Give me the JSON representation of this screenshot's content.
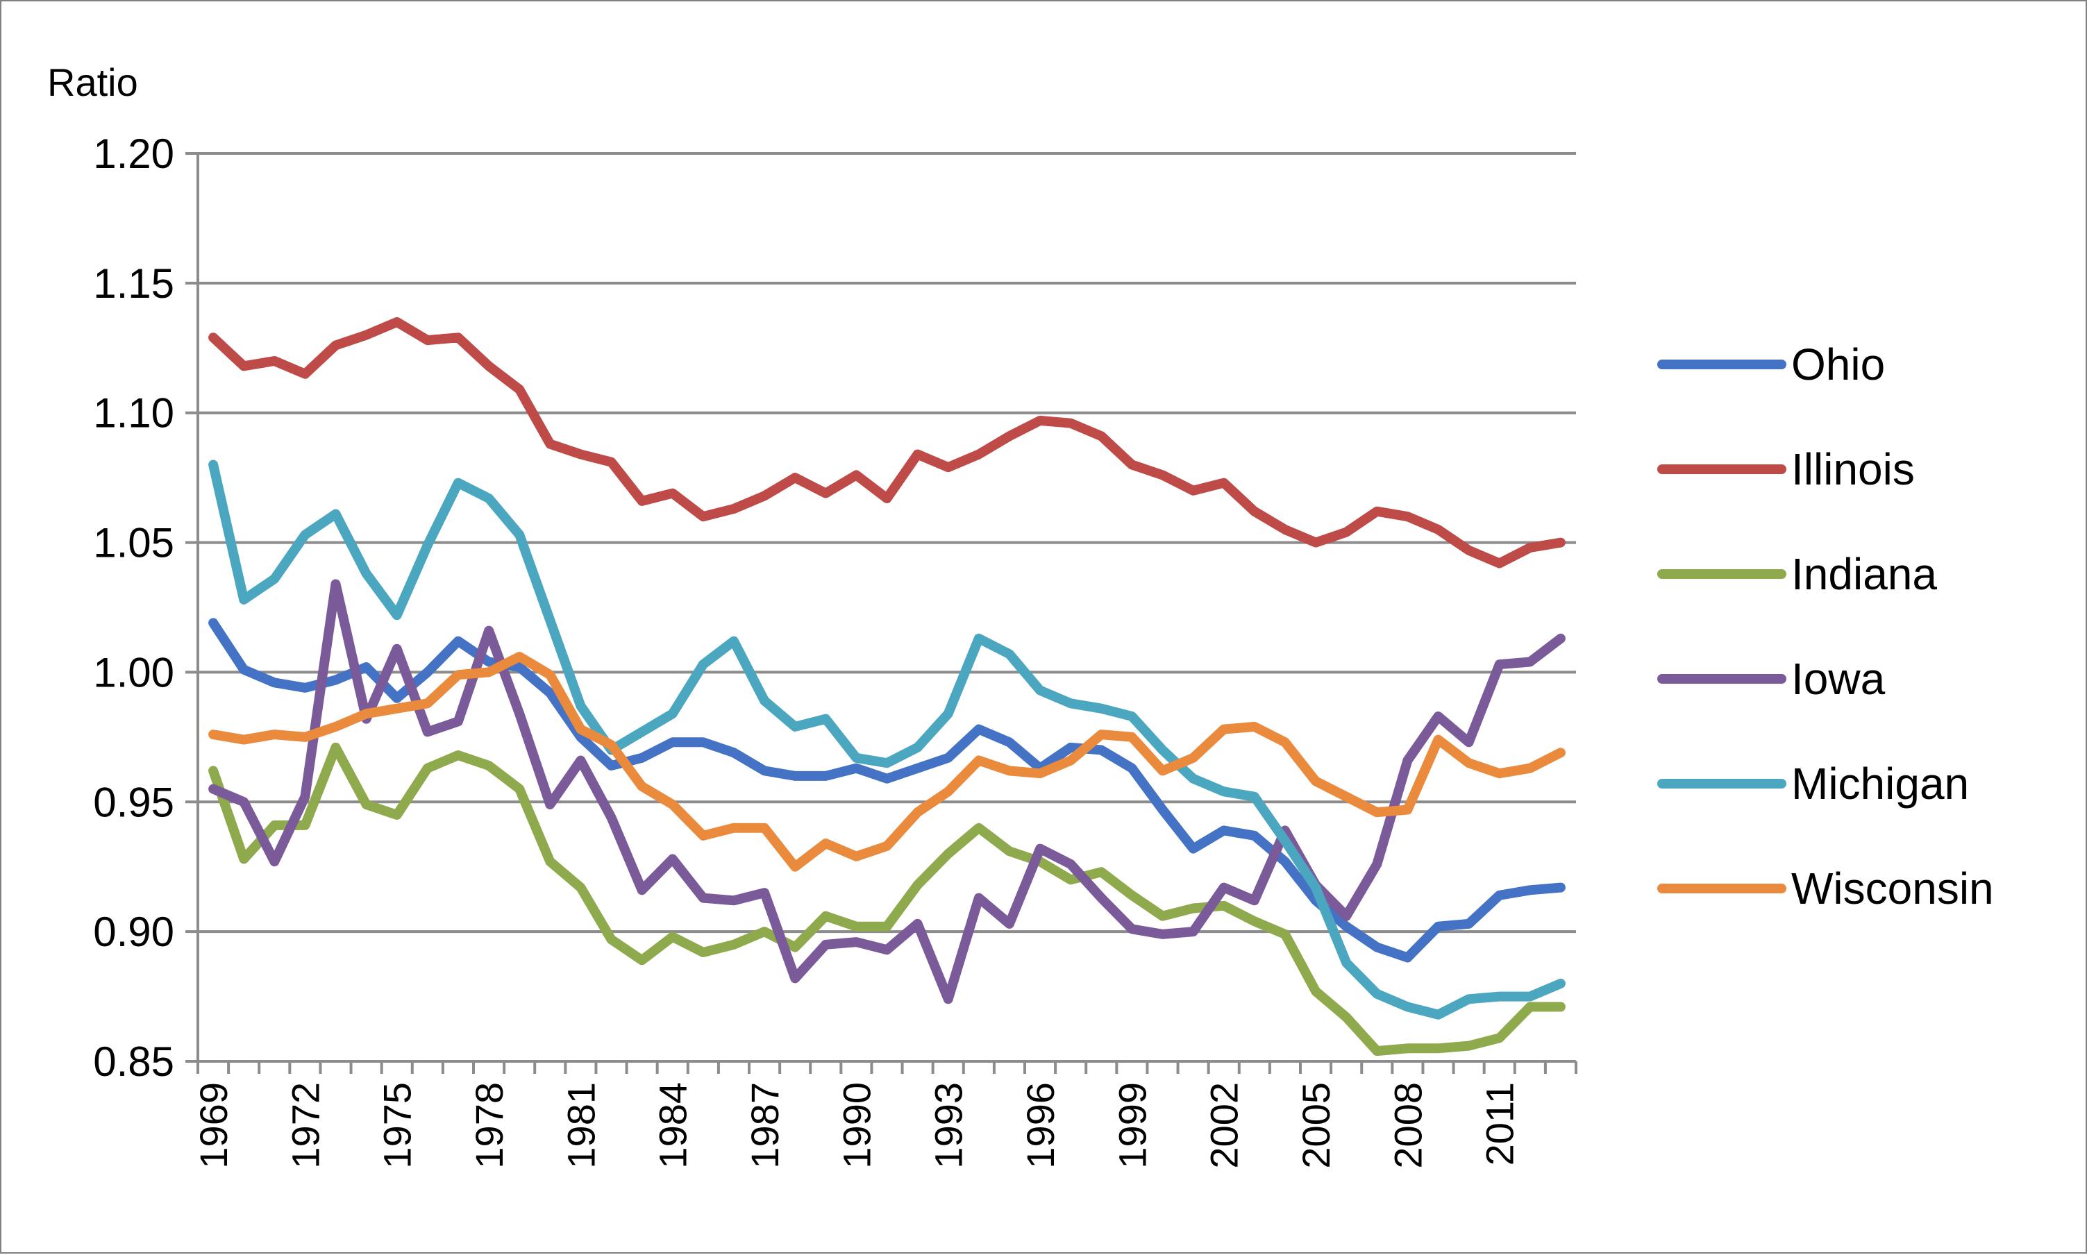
{
  "chart_data": {
    "type": "line",
    "title": "",
    "xlabel": "",
    "ylabel": "Ratio",
    "ylim": [
      0.85,
      1.2
    ],
    "yticks": [
      "1.20",
      "1.15",
      "1.10",
      "1.05",
      "1.00",
      "0.95",
      "0.90",
      "0.85"
    ],
    "xticks": [
      "1969",
      "1972",
      "1975",
      "1978",
      "1981",
      "1984",
      "1987",
      "1990",
      "1993",
      "1996",
      "1999",
      "2002",
      "2005",
      "2008",
      "2011"
    ],
    "grid": true,
    "legend_position": "right",
    "x": [
      1969,
      1970,
      1971,
      1972,
      1973,
      1974,
      1975,
      1976,
      1977,
      1978,
      1979,
      1980,
      1981,
      1982,
      1983,
      1984,
      1985,
      1986,
      1987,
      1988,
      1989,
      1990,
      1991,
      1992,
      1993,
      1994,
      1995,
      1996,
      1997,
      1998,
      1999,
      2000,
      2001,
      2002,
      2003,
      2004,
      2005,
      2006,
      2007,
      2008,
      2009,
      2010,
      2011,
      2012,
      2013
    ],
    "series": [
      {
        "name": "Ohio",
        "color": "#4472C4",
        "values": [
          1.019,
          1.001,
          0.996,
          0.994,
          0.997,
          1.002,
          0.99,
          1.0,
          1.012,
          1.004,
          1.002,
          0.992,
          0.975,
          0.964,
          0.967,
          0.973,
          0.973,
          0.969,
          0.962,
          0.96,
          0.96,
          0.963,
          0.959,
          0.963,
          0.967,
          0.978,
          0.973,
          0.963,
          0.971,
          0.97,
          0.963,
          0.947,
          0.932,
          0.939,
          0.937,
          0.927,
          0.912,
          0.902,
          0.894,
          0.89,
          0.902,
          0.903,
          0.914,
          0.916,
          0.917
        ]
      },
      {
        "name": "Illinois",
        "color": "#BE4B48",
        "values": [
          1.129,
          1.118,
          1.12,
          1.115,
          1.126,
          1.13,
          1.135,
          1.128,
          1.129,
          1.118,
          1.109,
          1.088,
          1.084,
          1.081,
          1.066,
          1.069,
          1.06,
          1.063,
          1.068,
          1.075,
          1.069,
          1.076,
          1.067,
          1.084,
          1.079,
          1.084,
          1.091,
          1.097,
          1.096,
          1.091,
          1.08,
          1.076,
          1.07,
          1.073,
          1.062,
          1.055,
          1.05,
          1.054,
          1.062,
          1.06,
          1.055,
          1.047,
          1.042,
          1.048,
          1.05
        ]
      },
      {
        "name": "Indiana",
        "color": "#8FAA4D",
        "values": [
          0.962,
          0.928,
          0.941,
          0.941,
          0.971,
          0.949,
          0.945,
          0.963,
          0.968,
          0.964,
          0.955,
          0.927,
          0.917,
          0.897,
          0.889,
          0.898,
          0.892,
          0.895,
          0.9,
          0.894,
          0.906,
          0.902,
          0.902,
          0.918,
          0.93,
          0.94,
          0.931,
          0.927,
          0.92,
          0.923,
          0.914,
          0.906,
          0.909,
          0.91,
          0.904,
          0.899,
          0.877,
          0.867,
          0.854,
          0.855,
          0.855,
          0.856,
          0.859,
          0.871,
          0.871
        ]
      },
      {
        "name": "Iowa",
        "color": "#7B5A9A",
        "values": [
          0.955,
          0.95,
          0.927,
          0.952,
          1.034,
          0.982,
          1.009,
          0.977,
          0.981,
          1.016,
          0.984,
          0.949,
          0.966,
          0.944,
          0.916,
          0.928,
          0.913,
          0.912,
          0.915,
          0.882,
          0.895,
          0.896,
          0.893,
          0.903,
          0.874,
          0.913,
          0.903,
          0.932,
          0.926,
          0.913,
          0.901,
          0.899,
          0.9,
          0.917,
          0.912,
          0.939,
          0.918,
          0.906,
          0.926,
          0.966,
          0.983,
          0.973,
          1.003,
          1.004,
          1.013
        ]
      },
      {
        "name": "Michigan",
        "color": "#4BA6BF",
        "values": [
          1.08,
          1.028,
          1.036,
          1.053,
          1.061,
          1.038,
          1.022,
          1.049,
          1.073,
          1.067,
          1.053,
          1.02,
          0.987,
          0.97,
          0.977,
          0.984,
          1.003,
          1.012,
          0.989,
          0.979,
          0.982,
          0.967,
          0.965,
          0.971,
          0.984,
          1.013,
          1.007,
          0.993,
          0.988,
          0.986,
          0.983,
          0.97,
          0.959,
          0.954,
          0.952,
          0.935,
          0.917,
          0.888,
          0.876,
          0.871,
          0.868,
          0.874,
          0.875,
          0.875,
          0.88
        ]
      },
      {
        "name": "Wisconsin",
        "color": "#EA8A3D",
        "values": [
          0.976,
          0.974,
          0.976,
          0.975,
          0.979,
          0.984,
          0.986,
          0.988,
          0.999,
          1.0,
          1.006,
          0.999,
          0.978,
          0.972,
          0.956,
          0.949,
          0.937,
          0.94,
          0.94,
          0.925,
          0.934,
          0.929,
          0.933,
          0.946,
          0.954,
          0.966,
          0.962,
          0.961,
          0.966,
          0.976,
          0.975,
          0.962,
          0.967,
          0.978,
          0.979,
          0.973,
          0.958,
          0.952,
          0.946,
          0.947,
          0.974,
          0.965,
          0.961,
          0.963,
          0.969
        ]
      }
    ]
  }
}
